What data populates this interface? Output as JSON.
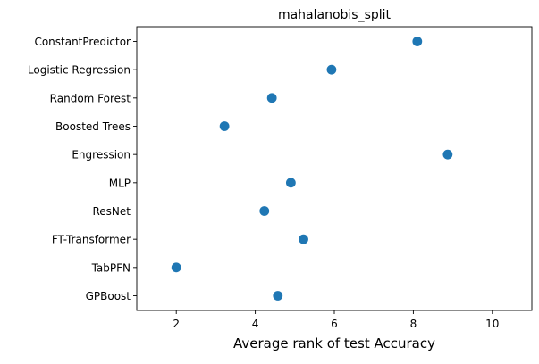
{
  "chart_data": {
    "type": "scatter",
    "title": "mahalanobis_split",
    "xlabel": "Average rank of test Accuracy",
    "ylabel": "",
    "xlim": [
      1,
      11
    ],
    "xticks": [
      2,
      4,
      6,
      8,
      10
    ],
    "grid": false,
    "categories": [
      "ConstantPredictor",
      "Logistic Regression",
      "Random Forest",
      "Boosted Trees",
      "Engression",
      "MLP",
      "ResNet",
      "FT-Transformer",
      "TabPFN",
      "GPBoost"
    ],
    "values": [
      8.1,
      5.93,
      4.42,
      3.22,
      8.87,
      4.9,
      4.23,
      5.22,
      2.0,
      4.57
    ],
    "marker_color": "#1f77b4"
  }
}
